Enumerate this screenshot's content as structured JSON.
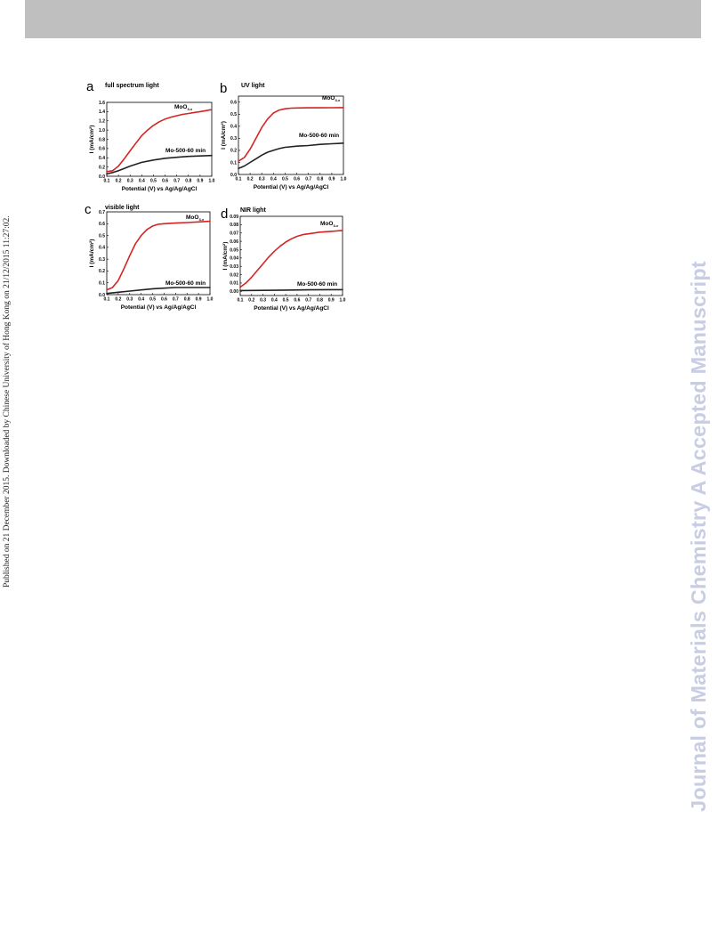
{
  "side_note": "Published on 21 December 2015. Downloaded by Chinese University of Hong Kong on 21/12/2015 11:27:02.",
  "watermark": "Journal of Materials Chemistry A Accepted Manuscript",
  "colors": {
    "moo": "#d42424",
    "mo500": "#222222",
    "watermark": "#c8cde3",
    "top_bar": "#bfbfbf"
  },
  "chart_data": [
    {
      "type": "line",
      "panel": "a",
      "title": "full spectrum light",
      "xlabel": "Potential (V) vs Ag/Ag/AgCl",
      "ylabel": "I (mA/cm²)",
      "xlim": [
        0.1,
        1.0
      ],
      "ylim": [
        0.0,
        1.6
      ],
      "xticks": [
        0.1,
        0.2,
        0.3,
        0.4,
        0.5,
        0.6,
        0.7,
        0.8,
        0.9,
        1.0
      ],
      "yticks": [
        0.0,
        0.2,
        0.4,
        0.6,
        0.8,
        1.0,
        1.2,
        1.4,
        1.6
      ],
      "ytick_decimals": 1,
      "legend": "inline labels",
      "series": [
        {
          "name": "MoO",
          "name_sub": "3-x",
          "color": "#d42424",
          "x": [
            0.1,
            0.15,
            0.2,
            0.25,
            0.3,
            0.35,
            0.4,
            0.45,
            0.5,
            0.55,
            0.6,
            0.65,
            0.7,
            0.75,
            0.8,
            0.85,
            0.9,
            0.95,
            0.99
          ],
          "y": [
            0.1,
            0.12,
            0.22,
            0.38,
            0.55,
            0.72,
            0.88,
            1.0,
            1.1,
            1.18,
            1.24,
            1.28,
            1.31,
            1.34,
            1.36,
            1.38,
            1.4,
            1.42,
            1.44
          ]
        },
        {
          "name": "Mo-500-60 min",
          "color": "#222222",
          "x": [
            0.1,
            0.15,
            0.2,
            0.25,
            0.3,
            0.35,
            0.4,
            0.5,
            0.6,
            0.7,
            0.8,
            0.9,
            1.0
          ],
          "y": [
            0.05,
            0.08,
            0.12,
            0.17,
            0.22,
            0.26,
            0.3,
            0.35,
            0.39,
            0.41,
            0.43,
            0.44,
            0.45
          ]
        }
      ]
    },
    {
      "type": "line",
      "panel": "b",
      "title": "UV light",
      "xlabel": "Potential (V) vs Ag/Ag/AgCl",
      "ylabel": "I (mA/cm²)",
      "xlim": [
        0.1,
        1.0
      ],
      "ylim": [
        0.0,
        0.65
      ],
      "xticks": [
        0.1,
        0.2,
        0.3,
        0.4,
        0.5,
        0.6,
        0.7,
        0.8,
        0.9,
        1.0
      ],
      "yticks": [
        0.0,
        0.1,
        0.2,
        0.3,
        0.4,
        0.5,
        0.6
      ],
      "ytick_decimals": 1,
      "legend": "inline labels",
      "series": [
        {
          "name": "MoO",
          "name_sub": "3-x",
          "color": "#d42424",
          "x": [
            0.1,
            0.15,
            0.2,
            0.25,
            0.3,
            0.35,
            0.4,
            0.45,
            0.5,
            0.55,
            0.6,
            0.7,
            0.8,
            0.9,
            1.0
          ],
          "y": [
            0.11,
            0.14,
            0.21,
            0.3,
            0.39,
            0.46,
            0.51,
            0.535,
            0.545,
            0.55,
            0.552,
            0.553,
            0.553,
            0.554,
            0.555
          ]
        },
        {
          "name": "Mo-500-60 min",
          "color": "#222222",
          "x": [
            0.1,
            0.15,
            0.2,
            0.25,
            0.3,
            0.35,
            0.4,
            0.45,
            0.5,
            0.6,
            0.7,
            0.8,
            0.9,
            1.0
          ],
          "y": [
            0.05,
            0.07,
            0.1,
            0.13,
            0.16,
            0.185,
            0.2,
            0.215,
            0.225,
            0.235,
            0.24,
            0.25,
            0.255,
            0.26
          ]
        }
      ]
    },
    {
      "type": "line",
      "panel": "c",
      "title": "visible light",
      "xlabel": "Potential (V) vs Ag/Ag/AgCl",
      "ylabel": "I (mA/cm²)",
      "xlim": [
        0.1,
        1.0
      ],
      "ylim": [
        0.0,
        0.7
      ],
      "xticks": [
        0.1,
        0.2,
        0.3,
        0.4,
        0.5,
        0.6,
        0.7,
        0.8,
        0.9,
        1.0
      ],
      "yticks": [
        0.0,
        0.1,
        0.2,
        0.3,
        0.4,
        0.5,
        0.6,
        0.7
      ],
      "ytick_decimals": 1,
      "legend": "inline labels",
      "series": [
        {
          "name": "MoO",
          "name_sub": "3-x",
          "color": "#d42424",
          "x": [
            0.1,
            0.15,
            0.2,
            0.25,
            0.3,
            0.35,
            0.4,
            0.45,
            0.5,
            0.55,
            0.6,
            0.7,
            0.8,
            0.9,
            1.0
          ],
          "y": [
            0.04,
            0.06,
            0.12,
            0.22,
            0.33,
            0.43,
            0.5,
            0.55,
            0.58,
            0.595,
            0.6,
            0.605,
            0.61,
            0.615,
            0.62
          ]
        },
        {
          "name": "Mo-500-60 min",
          "color": "#222222",
          "x": [
            0.1,
            0.2,
            0.3,
            0.4,
            0.5,
            0.6,
            0.7,
            0.8,
            0.9,
            1.0
          ],
          "y": [
            0.01,
            0.02,
            0.03,
            0.04,
            0.05,
            0.055,
            0.06,
            0.06,
            0.06,
            0.06
          ]
        }
      ]
    },
    {
      "type": "line",
      "panel": "d",
      "title": "NIR light",
      "xlabel": "Potential (V) vs Ag/Ag/AgCl",
      "ylabel": "I (mA/cm²)",
      "xlim": [
        0.1,
        1.0
      ],
      "ylim": [
        -0.005,
        0.09
      ],
      "xticks": [
        0.1,
        0.2,
        0.3,
        0.4,
        0.5,
        0.6,
        0.7,
        0.8,
        0.9,
        1.0
      ],
      "yticks": [
        0.0,
        0.01,
        0.02,
        0.03,
        0.04,
        0.05,
        0.06,
        0.07,
        0.08,
        0.09
      ],
      "ytick_decimals": 2,
      "legend": "inline labels",
      "series": [
        {
          "name": "MoO",
          "name_sub": "3-x",
          "color": "#d42424",
          "x": [
            0.1,
            0.15,
            0.2,
            0.25,
            0.3,
            0.35,
            0.4,
            0.45,
            0.5,
            0.55,
            0.6,
            0.65,
            0.7,
            0.8,
            0.9,
            1.0
          ],
          "y": [
            0.005,
            0.01,
            0.017,
            0.025,
            0.033,
            0.041,
            0.048,
            0.054,
            0.059,
            0.063,
            0.066,
            0.068,
            0.069,
            0.071,
            0.072,
            0.073
          ]
        },
        {
          "name": "Mo-500-60 min",
          "color": "#222222",
          "x": [
            0.1,
            0.3,
            0.5,
            0.7,
            0.9,
            1.0
          ],
          "y": [
            0.001,
            0.0012,
            0.0015,
            0.0018,
            0.002,
            0.002
          ]
        }
      ]
    }
  ]
}
